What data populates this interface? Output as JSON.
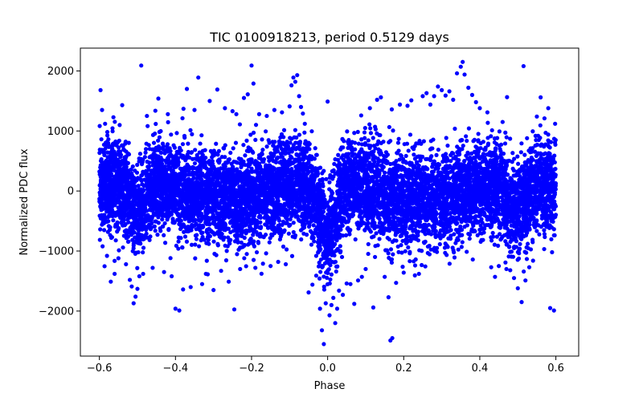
{
  "chart_data": {
    "type": "scatter",
    "title": "TIC 0100918213, period 0.5129 days",
    "xlabel": "Phase",
    "ylabel": "Normalized PDC flux",
    "xlim": [
      -0.65,
      0.66
    ],
    "ylim": [
      -2750,
      2380
    ],
    "xticks": [
      -0.6,
      -0.4,
      -0.2,
      0.0,
      0.2,
      0.4,
      0.6
    ],
    "xtick_labels": [
      "−0.6",
      "−0.4",
      "−0.2",
      "0.0",
      "0.2",
      "0.4",
      "0.6"
    ],
    "yticks": [
      -2000,
      -1000,
      0,
      1000,
      2000
    ],
    "ytick_labels": [
      "−2000",
      "−1000",
      "0",
      "1000",
      "2000"
    ],
    "grid": false,
    "marker_color": "#0000ff",
    "series": [
      {
        "points": [
          [
            -0.597,
            1680
          ],
          [
            -0.593,
            1350
          ],
          [
            -0.585,
            1120
          ],
          [
            -0.58,
            -1080
          ],
          [
            -0.57,
            -1510
          ],
          [
            -0.56,
            -1380
          ],
          [
            -0.55,
            -1120
          ],
          [
            -0.54,
            1430
          ],
          [
            -0.53,
            -1220
          ],
          [
            -0.52,
            -1480
          ],
          [
            -0.515,
            -1590
          ],
          [
            -0.51,
            -1870
          ],
          [
            -0.505,
            -1760
          ],
          [
            -0.5,
            -1630
          ],
          [
            -0.495,
            -1420
          ],
          [
            -0.49,
            2090
          ],
          [
            -0.485,
            -1380
          ],
          [
            -0.475,
            1250
          ],
          [
            -0.46,
            -1280
          ],
          [
            -0.445,
            1540
          ],
          [
            -0.43,
            -1350
          ],
          [
            -0.42,
            1280
          ],
          [
            -0.41,
            -1420
          ],
          [
            -0.4,
            -1960
          ],
          [
            -0.39,
            -1990
          ],
          [
            -0.38,
            -1640
          ],
          [
            -0.37,
            1700
          ],
          [
            -0.36,
            -1600
          ],
          [
            -0.35,
            1350
          ],
          [
            -0.34,
            1890
          ],
          [
            -0.33,
            -1550
          ],
          [
            -0.32,
            -1380
          ],
          [
            -0.31,
            1500
          ],
          [
            -0.3,
            -1650
          ],
          [
            -0.29,
            1690
          ],
          [
            -0.28,
            -1330
          ],
          [
            -0.27,
            1380
          ],
          [
            -0.26,
            -1510
          ],
          [
            -0.25,
            1330
          ],
          [
            -0.24,
            1280
          ],
          [
            -0.23,
            -1300
          ],
          [
            -0.22,
            1550
          ],
          [
            -0.21,
            1610
          ],
          [
            -0.2,
            2090
          ],
          [
            -0.195,
            1790
          ],
          [
            -0.19,
            -1280
          ],
          [
            -0.18,
            1280
          ],
          [
            -0.17,
            -1210
          ],
          [
            -0.16,
            1250
          ],
          [
            -0.15,
            -1250
          ],
          [
            -0.14,
            1350
          ],
          [
            -0.13,
            -1180
          ],
          [
            -0.12,
            1310
          ],
          [
            -0.11,
            -1220
          ],
          [
            -0.1,
            1410
          ],
          [
            -0.095,
            1760
          ],
          [
            -0.09,
            1890
          ],
          [
            -0.085,
            1820
          ],
          [
            -0.08,
            1930
          ],
          [
            -0.075,
            1580
          ],
          [
            -0.07,
            1400
          ],
          [
            -0.065,
            1290
          ],
          [
            -0.06,
            1120
          ],
          [
            -0.05,
            -1690
          ],
          [
            -0.04,
            -1560
          ],
          [
            -0.03,
            -1410
          ],
          [
            -0.02,
            -1960
          ],
          [
            -0.015,
            -2320
          ],
          [
            -0.01,
            -2550
          ],
          [
            -0.005,
            -1870
          ],
          [
            0.0,
            1490
          ],
          [
            0.005,
            -2070
          ],
          [
            0.01,
            -1900
          ],
          [
            0.015,
            -1780
          ],
          [
            0.02,
            -2200
          ],
          [
            0.025,
            -1960
          ],
          [
            0.03,
            -1660
          ],
          [
            0.04,
            -1730
          ],
          [
            0.05,
            -1540
          ],
          [
            0.06,
            -1550
          ],
          [
            0.07,
            -1880
          ],
          [
            0.08,
            -1490
          ],
          [
            0.09,
            -1430
          ],
          [
            0.1,
            -1300
          ],
          [
            0.11,
            1110
          ],
          [
            0.12,
            -1940
          ],
          [
            0.13,
            1520
          ],
          [
            0.14,
            1560
          ],
          [
            0.15,
            -1430
          ],
          [
            0.16,
            -1770
          ],
          [
            0.165,
            -2490
          ],
          [
            0.17,
            -2450
          ],
          [
            0.18,
            -1530
          ],
          [
            0.19,
            1440
          ],
          [
            0.2,
            -1360
          ],
          [
            0.21,
            1420
          ],
          [
            0.22,
            1510
          ],
          [
            0.23,
            -1240
          ],
          [
            0.24,
            -1380
          ],
          [
            0.25,
            1580
          ],
          [
            0.26,
            1630
          ],
          [
            0.27,
            1440
          ],
          [
            0.28,
            1580
          ],
          [
            0.29,
            1740
          ],
          [
            0.3,
            1680
          ],
          [
            0.31,
            1590
          ],
          [
            0.32,
            1660
          ],
          [
            0.33,
            1520
          ],
          [
            0.34,
            1960
          ],
          [
            0.35,
            2070
          ],
          [
            0.355,
            2150
          ],
          [
            0.36,
            1940
          ],
          [
            0.37,
            1720
          ],
          [
            0.38,
            1600
          ],
          [
            0.39,
            1480
          ],
          [
            0.4,
            1380
          ],
          [
            0.42,
            1310
          ],
          [
            0.43,
            -1270
          ],
          [
            0.44,
            -1430
          ],
          [
            0.45,
            -1250
          ],
          [
            0.46,
            1150
          ],
          [
            0.47,
            -1300
          ],
          [
            0.48,
            -1320
          ],
          [
            0.49,
            -1450
          ],
          [
            0.5,
            -1620
          ],
          [
            0.51,
            -1850
          ],
          [
            0.515,
            2080
          ],
          [
            0.52,
            -1490
          ],
          [
            0.53,
            -1270
          ],
          [
            0.54,
            -1160
          ],
          [
            0.55,
            1240
          ],
          [
            0.56,
            1560
          ],
          [
            0.57,
            1210
          ],
          [
            0.58,
            1380
          ],
          [
            0.585,
            -1950
          ],
          [
            0.59,
            -1020
          ],
          [
            0.595,
            -1990
          ],
          [
            0.598,
            1120
          ]
        ]
      }
    ]
  }
}
